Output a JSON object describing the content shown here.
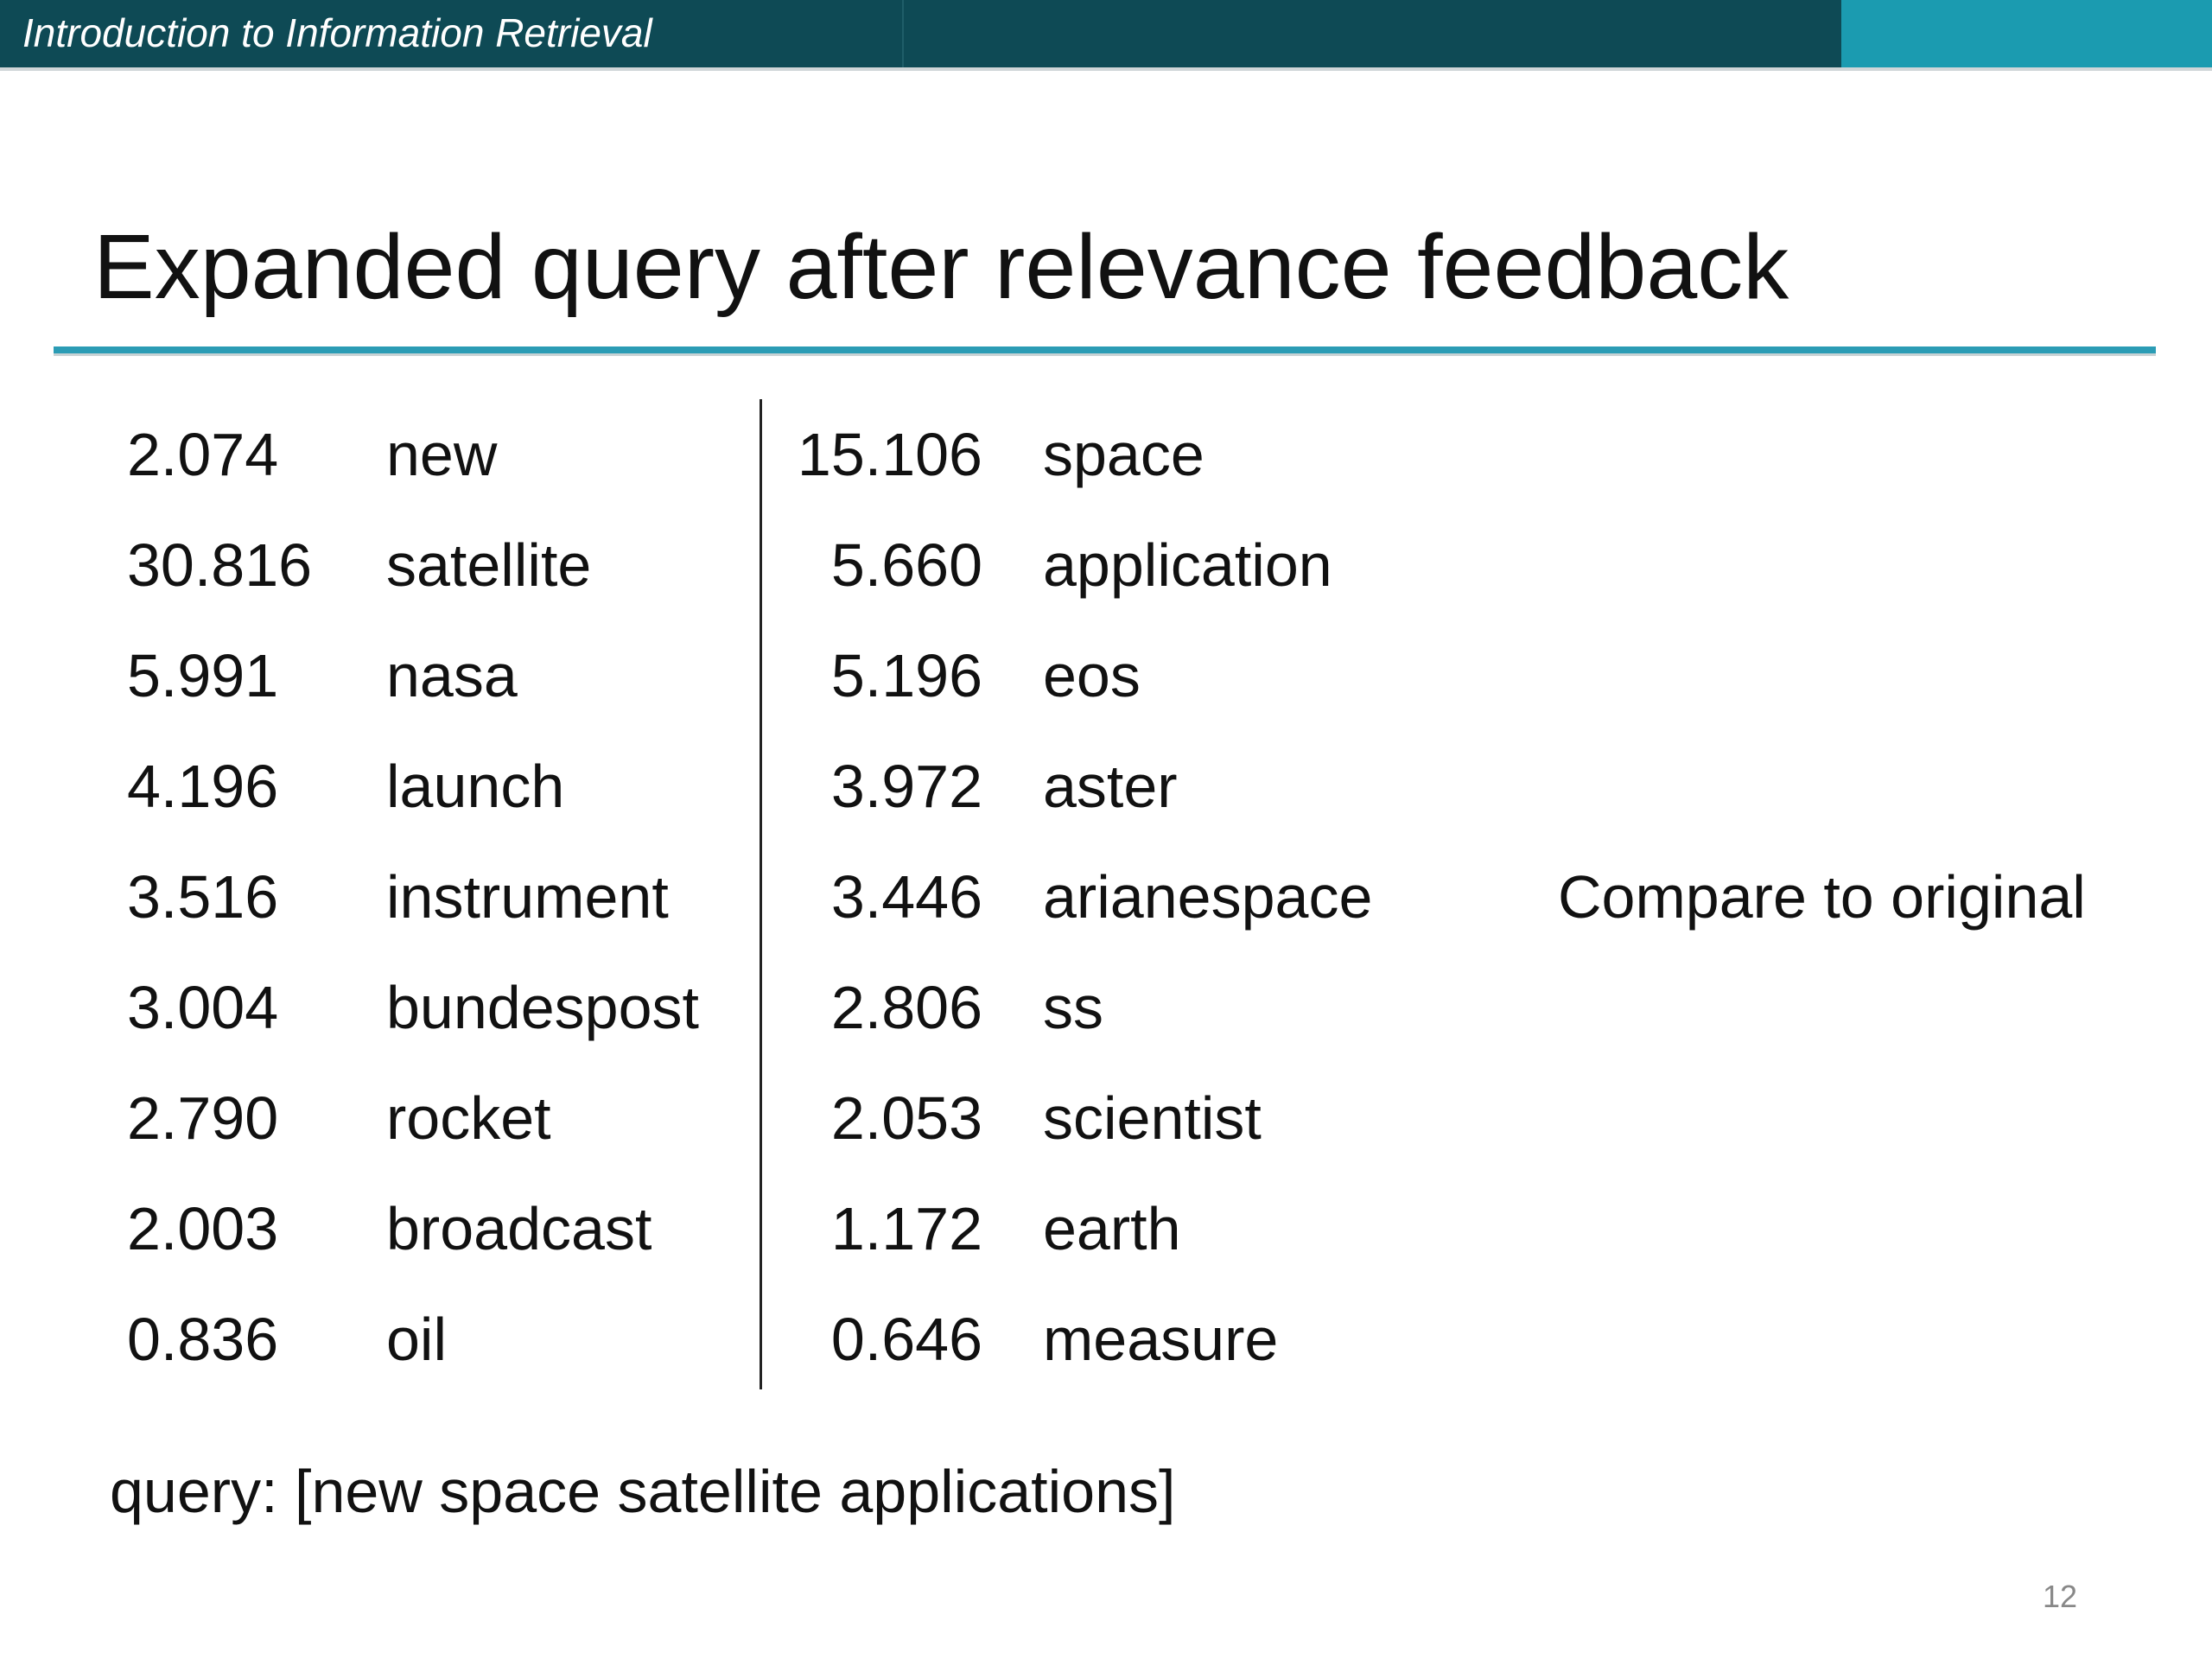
{
  "header": {
    "title": "Introduction to Information Retrieval"
  },
  "title": "Expanded query after relevance feedback",
  "table": {
    "rows": [
      [
        "2.074",
        "new",
        "15.106",
        "space"
      ],
      [
        "30.816",
        "satellite",
        "5.660",
        "application"
      ],
      [
        "5.991",
        "nasa",
        "5.196",
        "eos"
      ],
      [
        "4.196",
        "launch",
        "3.972",
        "aster"
      ],
      [
        "3.516",
        "instrument",
        "3.446",
        "arianespace"
      ],
      [
        "3.004",
        "bundespost",
        "2.806",
        "ss"
      ],
      [
        "2.790",
        "rocket",
        "2.053",
        "scientist"
      ],
      [
        "2.003",
        "broadcast",
        "1.172",
        "earth"
      ],
      [
        "0.836",
        "oil",
        "0.646",
        "measure"
      ]
    ]
  },
  "note": "Compare to original",
  "query": "query: [new space satellite applications]",
  "page_number": "12"
}
